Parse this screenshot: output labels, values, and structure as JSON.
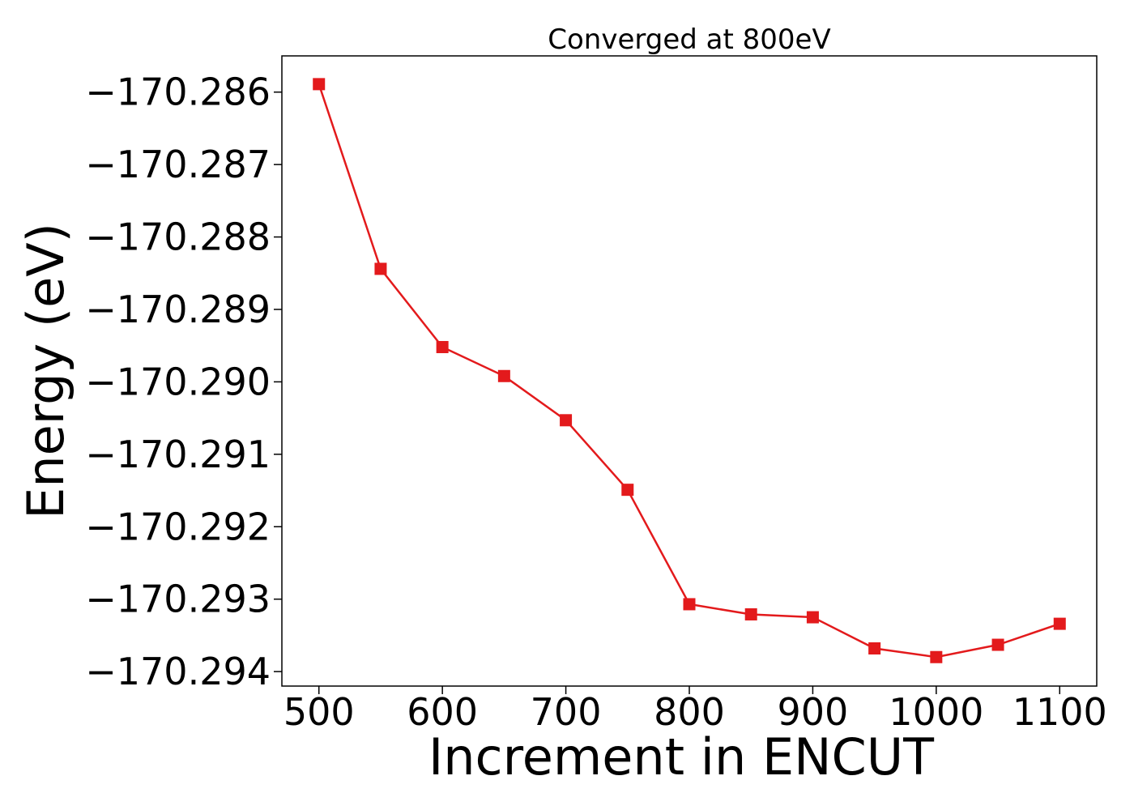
{
  "chart_data": {
    "type": "line",
    "title": "Converged at 800eV",
    "xlabel": "Increment in ENCUT",
    "ylabel": "Energy (eV)",
    "xlim": [
      470,
      1130
    ],
    "ylim": [
      -170.2942,
      -170.2855
    ],
    "x_ticks": [
      500,
      600,
      700,
      800,
      900,
      1000,
      1100
    ],
    "x_tick_labels": [
      "500",
      "600",
      "700",
      "800",
      "900",
      "1000",
      "1100"
    ],
    "y_ticks": [
      -170.286,
      -170.287,
      -170.288,
      -170.289,
      -170.29,
      -170.291,
      -170.292,
      -170.293,
      -170.294
    ],
    "y_tick_labels": [
      "−170.286",
      "−170.287",
      "−170.288",
      "−170.289",
      "−170.290",
      "−170.291",
      "−170.292",
      "−170.293",
      "−170.294"
    ],
    "grid": false,
    "series": [
      {
        "color": "#e31a1c",
        "marker": "square",
        "x": [
          500,
          550,
          600,
          650,
          700,
          750,
          800,
          850,
          900,
          950,
          1000,
          1050,
          1100
        ],
        "y": [
          -170.28589,
          -170.28844,
          -170.28952,
          -170.28992,
          -170.29053,
          -170.29149,
          -170.29307,
          -170.29321,
          -170.29325,
          -170.29368,
          -170.2938,
          -170.29363,
          -170.29334
        ]
      }
    ]
  }
}
